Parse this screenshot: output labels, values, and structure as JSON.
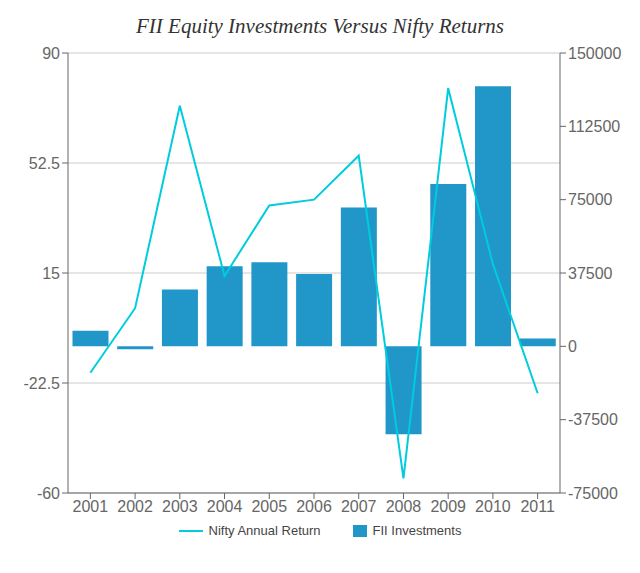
{
  "chart_data": {
    "type": "bar",
    "title": "FII Equity Investments Versus Nifty Returns",
    "categories": [
      "2001",
      "2002",
      "2003",
      "2004",
      "2005",
      "2006",
      "2007",
      "2008",
      "2009",
      "2010",
      "2011"
    ],
    "series": [
      {
        "name": "Nifty Annual Return",
        "type": "line",
        "color": "#00CCDD",
        "values": [
          -19,
          3,
          72,
          14,
          38,
          40,
          55,
          -55,
          78,
          18,
          -26
        ]
      },
      {
        "name": "FII Investments",
        "type": "bar",
        "axis": "y2",
        "color": "#2196C8",
        "values": [
          8000,
          -1500,
          29000,
          41000,
          43000,
          37000,
          71000,
          -45000,
          83000,
          133000,
          4000
        ]
      }
    ],
    "ylim": [
      -60,
      90
    ],
    "yticks": [
      -60,
      -22.5,
      15,
      52.5,
      90
    ],
    "y2lim": [
      -75000,
      150000
    ],
    "y2ticks": [
      -75000,
      -37500,
      0,
      37500,
      75000,
      112500,
      150000
    ],
    "grid": true,
    "legend": "bottom"
  }
}
